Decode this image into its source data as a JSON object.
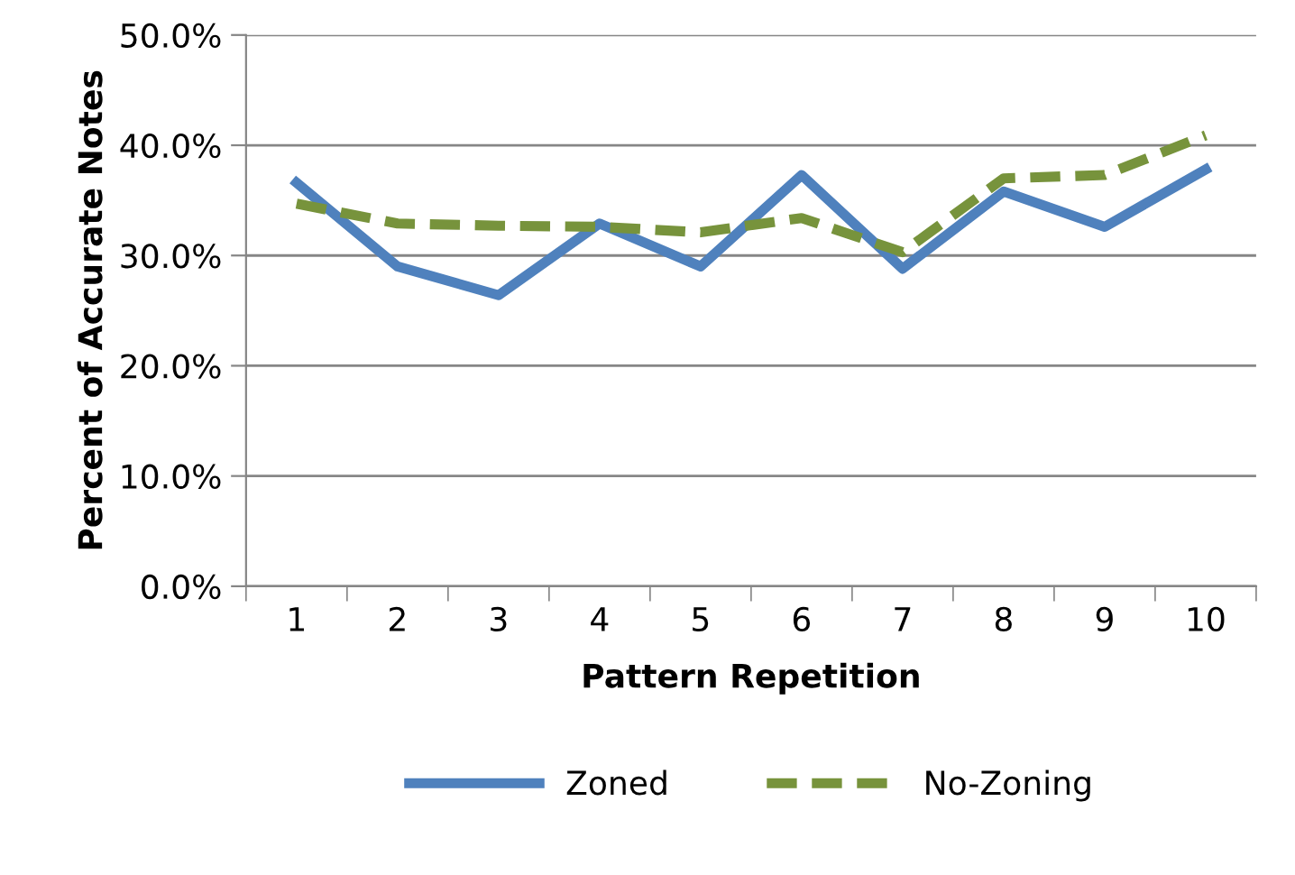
{
  "chart_data": {
    "type": "line",
    "xlabel": "Pattern Repetition",
    "ylabel": "Percent of Accurate Notes",
    "categories": [
      "1",
      "2",
      "3",
      "4",
      "5",
      "6",
      "7",
      "8",
      "9",
      "10"
    ],
    "series": [
      {
        "name": "Zoned",
        "color": "#4f81bd",
        "line_style": "solid",
        "values": [
          36.6,
          29.0,
          26.4,
          32.9,
          29.0,
          37.3,
          28.8,
          35.8,
          32.6,
          37.8
        ]
      },
      {
        "name": "No-Zoning",
        "color": "#77933c",
        "line_style": "dashed",
        "values": [
          34.7,
          32.9,
          32.7,
          32.6,
          32.1,
          33.4,
          30.3,
          37.0,
          37.3,
          40.9
        ]
      }
    ],
    "ylim": [
      0,
      50
    ],
    "yticks": [
      {
        "value": 0,
        "label": "0.0%"
      },
      {
        "value": 10,
        "label": "10.0%"
      },
      {
        "value": 20,
        "label": "20.0%"
      },
      {
        "value": 30,
        "label": "30.0%"
      },
      {
        "value": 40,
        "label": "40.0%"
      },
      {
        "value": 50,
        "label": "50.0%"
      }
    ],
    "grid": "y",
    "legend": "bottom",
    "marker": "none"
  }
}
